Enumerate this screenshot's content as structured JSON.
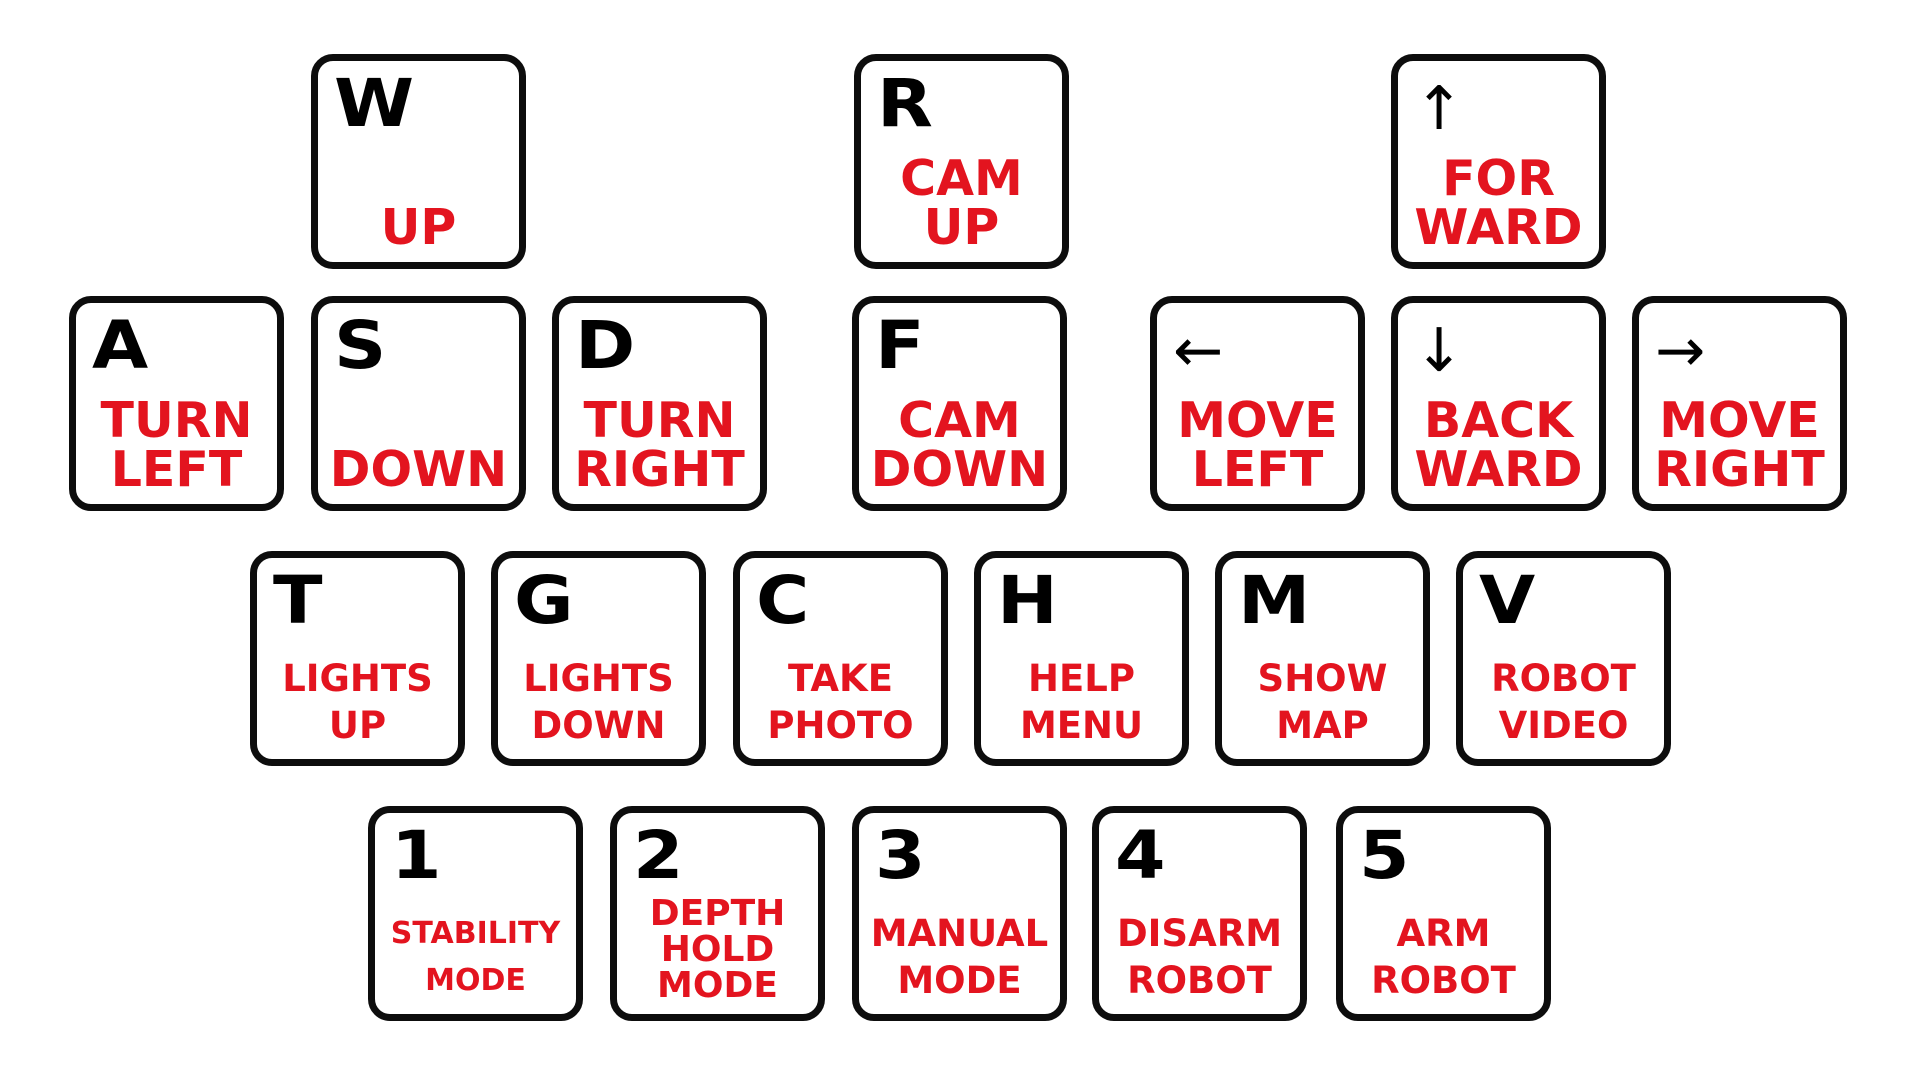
{
  "accent_color": "#e3141f",
  "key_border_color": "#0d0d0d",
  "keys": {
    "w": {
      "letter": "W",
      "label": "UP"
    },
    "r": {
      "letter": "R",
      "label": "CAM\nUP"
    },
    "up": {
      "letter": "↑",
      "icon": "arrow-up-icon",
      "label": "FOR\nWARD"
    },
    "a": {
      "letter": "A",
      "label": "TURN\nLEFT"
    },
    "s": {
      "letter": "S",
      "label": "DOWN"
    },
    "d": {
      "letter": "D",
      "label": "TURN\nRIGHT"
    },
    "f": {
      "letter": "F",
      "label": "CAM\nDOWN"
    },
    "left": {
      "letter": "←",
      "icon": "arrow-left-icon",
      "label": "MOVE\nLEFT"
    },
    "down": {
      "letter": "↓",
      "icon": "arrow-down-icon",
      "label": "BACK\nWARD"
    },
    "right": {
      "letter": "→",
      "icon": "arrow-right-icon",
      "label": "MOVE\nRIGHT"
    },
    "t": {
      "letter": "T",
      "label": "LIGHTS\nUP"
    },
    "g": {
      "letter": "G",
      "label": "LIGHTS\nDOWN"
    },
    "c": {
      "letter": "C",
      "label": "TAKE\nPHOTO"
    },
    "h": {
      "letter": "H",
      "label": "HELP\nMENU"
    },
    "m": {
      "letter": "M",
      "label": "SHOW\nMAP"
    },
    "v": {
      "letter": "V",
      "label": "ROBOT\nVIDEO"
    },
    "k1": {
      "letter": "1",
      "label": "STABILITY\nMODE"
    },
    "k2": {
      "letter": "2",
      "label": "DEPTH\nHOLD\nMODE"
    },
    "k3": {
      "letter": "3",
      "label": "MANUAL\nMODE"
    },
    "k4": {
      "letter": "4",
      "label": "DISARM\nROBOT"
    },
    "k5": {
      "letter": "5",
      "label": "ARM\nROBOT"
    }
  }
}
